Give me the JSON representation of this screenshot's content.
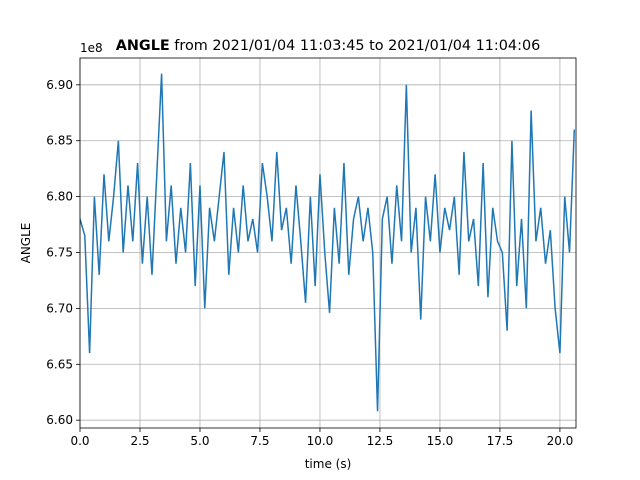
{
  "chart_data": {
    "type": "line",
    "title_parts": [
      "ANGLE",
      "from 2021/01/04 11:03:45 to 2021/01/04 11:04:06"
    ],
    "x_label": "time (s)",
    "y_label": "ANGLE",
    "y_offset_label": "1e8",
    "xlim": [
      0,
      20.67
    ],
    "ylim": [
      6.593,
      6.924
    ],
    "xticks": [
      {
        "value": 0,
        "label": "0.0"
      },
      2.5,
      {
        "value": 5,
        "label": "5.0"
      },
      7.5,
      {
        "value": 10,
        "label": "10.0"
      },
      12.5,
      {
        "value": 15,
        "label": "15.0"
      },
      17.5,
      {
        "value": 20,
        "label": "20.0"
      }
    ],
    "yticks": [
      {
        "value": 6.6,
        "label": "6.60"
      },
      6.65,
      {
        "value": 6.7,
        "label": "6.70"
      },
      6.75,
      {
        "value": 6.8,
        "label": "6.80"
      },
      6.85,
      {
        "value": 6.9,
        "label": "6.90"
      }
    ],
    "grid": true,
    "x": [
      0.0,
      0.2,
      0.4,
      0.6,
      0.8,
      1.0,
      1.2,
      1.4,
      1.6,
      1.8,
      2.0,
      2.2,
      2.4,
      2.6,
      2.8,
      3.0,
      3.2,
      3.4,
      3.6,
      3.8,
      4.0,
      4.2,
      4.4,
      4.6,
      4.8,
      5.0,
      5.2,
      5.4,
      5.6,
      5.8,
      6.0,
      6.2,
      6.4,
      6.6,
      6.8,
      7.0,
      7.2,
      7.4,
      7.6,
      7.8,
      8.0,
      8.2,
      8.4,
      8.6,
      8.8,
      9.0,
      9.2,
      9.4,
      9.6,
      9.8,
      10.0,
      10.2,
      10.4,
      10.6,
      10.8,
      11.0,
      11.2,
      11.4,
      11.6,
      11.8,
      12.0,
      12.2,
      12.4,
      12.6,
      12.8,
      13.0,
      13.2,
      13.4,
      13.6,
      13.8,
      14.0,
      14.2,
      14.4,
      14.6,
      14.8,
      15.0,
      15.2,
      15.4,
      15.6,
      15.8,
      16.0,
      16.2,
      16.4,
      16.6,
      16.8,
      17.0,
      17.2,
      17.4,
      17.6,
      17.8,
      18.0,
      18.2,
      18.4,
      18.6,
      18.8,
      19.0,
      19.2,
      19.4,
      19.6,
      19.8,
      20.0,
      20.2,
      20.4,
      20.6
    ],
    "series": [
      {
        "name": "ANGLE",
        "color": "#1f77b4",
        "values": [
          6.78,
          6.765,
          6.66,
          6.8,
          6.73,
          6.82,
          6.76,
          6.8,
          6.85,
          6.75,
          6.81,
          6.76,
          6.83,
          6.74,
          6.8,
          6.73,
          6.82,
          6.91,
          6.76,
          6.81,
          6.74,
          6.79,
          6.75,
          6.83,
          6.72,
          6.81,
          6.7,
          6.79,
          6.76,
          6.8,
          6.84,
          6.73,
          6.79,
          6.75,
          6.81,
          6.76,
          6.78,
          6.75,
          6.83,
          6.8,
          6.76,
          6.84,
          6.77,
          6.79,
          6.74,
          6.81,
          6.76,
          6.705,
          6.8,
          6.72,
          6.82,
          6.75,
          6.696,
          6.79,
          6.74,
          6.83,
          6.73,
          6.78,
          6.8,
          6.76,
          6.79,
          6.75,
          6.608,
          6.78,
          6.8,
          6.74,
          6.81,
          6.76,
          6.9,
          6.75,
          6.79,
          6.69,
          6.8,
          6.76,
          6.82,
          6.75,
          6.79,
          6.77,
          6.8,
          6.73,
          6.84,
          6.76,
          6.78,
          6.72,
          6.83,
          6.71,
          6.79,
          6.76,
          6.75,
          6.68,
          6.85,
          6.72,
          6.78,
          6.7,
          6.877,
          6.76,
          6.79,
          6.74,
          6.77,
          6.7,
          6.66,
          6.8,
          6.75,
          6.86
        ]
      }
    ]
  }
}
